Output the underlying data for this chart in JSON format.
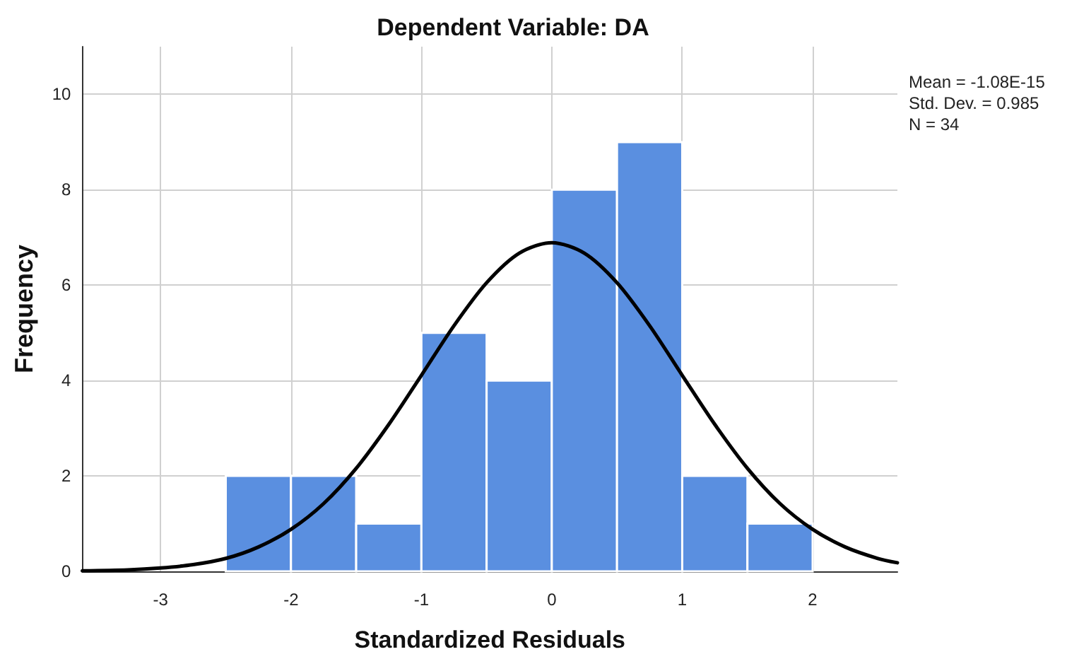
{
  "chart_data": {
    "type": "histogram",
    "title": "Dependent Variable: DA",
    "xlabel": "Standardized Residuals",
    "ylabel": "Frequency",
    "bins": [
      -2.5,
      -2,
      -1.5,
      -1,
      -0.5,
      0,
      0.5,
      1,
      1.5,
      2
    ],
    "values": [
      2,
      2,
      1,
      5,
      4,
      8,
      9,
      2,
      1
    ],
    "color": "#5a8fe0",
    "series": [
      {
        "type": "line",
        "color": "#000000",
        "x": [
          -3.6,
          -3.25,
          -3,
          -2.75,
          -2.5,
          -2.25,
          -2,
          -1.75,
          -1.5,
          -1.25,
          -1,
          -0.75,
          -0.5,
          -0.25,
          0,
          0.25,
          0.5,
          0.75,
          1,
          1.25,
          1.5,
          1.75,
          2,
          2.25,
          2.5,
          2.65
        ],
        "values": [
          0.01,
          0.03,
          0.07,
          0.14,
          0.27,
          0.51,
          0.88,
          1.42,
          2.16,
          3.08,
          4.11,
          5.15,
          6.05,
          6.67,
          6.89,
          6.67,
          6.05,
          5.15,
          4.11,
          3.08,
          2.16,
          1.42,
          0.88,
          0.51,
          0.27,
          0.18
        ]
      }
    ],
    "xlim": [
      -3.6,
      2.65
    ],
    "xticks": [
      -3,
      -2,
      -1,
      0,
      1,
      2
    ],
    "ylim": [
      0,
      11
    ],
    "yticks": [
      0,
      2,
      4,
      6,
      8,
      10
    ],
    "grid": true,
    "marker": "none",
    "line_style": "solid",
    "annotations": [
      "Mean = -1.08E-15",
      "Std. Dev. = 0.985",
      "N = 34"
    ]
  }
}
